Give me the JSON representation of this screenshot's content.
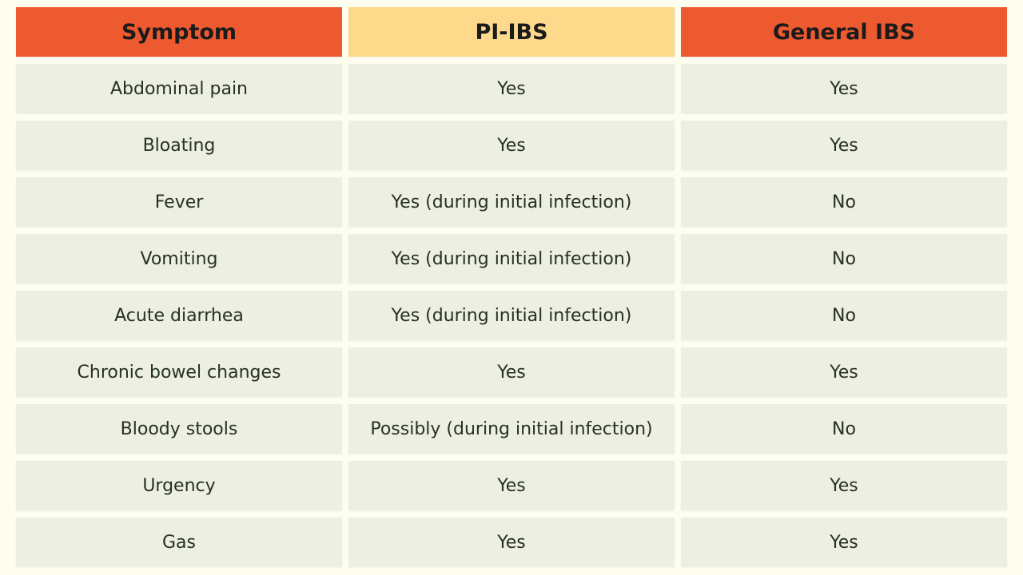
{
  "table": {
    "header": [
      "Symptom",
      "PI-IBS",
      "General IBS"
    ],
    "rows": [
      [
        "Abdominal pain",
        "Yes",
        "Yes"
      ],
      [
        "Bloating",
        "Yes",
        "Yes"
      ],
      [
        "Fever",
        "Yes (during initial infection)",
        "No"
      ],
      [
        "Vomiting",
        "Yes (during initial infection)",
        "No"
      ],
      [
        "Acute diarrhea",
        "Yes (during initial infection)",
        "No"
      ],
      [
        "Chronic bowel changes",
        "Yes",
        "Yes"
      ],
      [
        "Bloody stools",
        "Possibly (during initial infection)",
        "No"
      ],
      [
        "Urgency",
        "Yes",
        "Yes"
      ],
      [
        "Gas",
        "Yes",
        "Yes"
      ]
    ]
  }
}
